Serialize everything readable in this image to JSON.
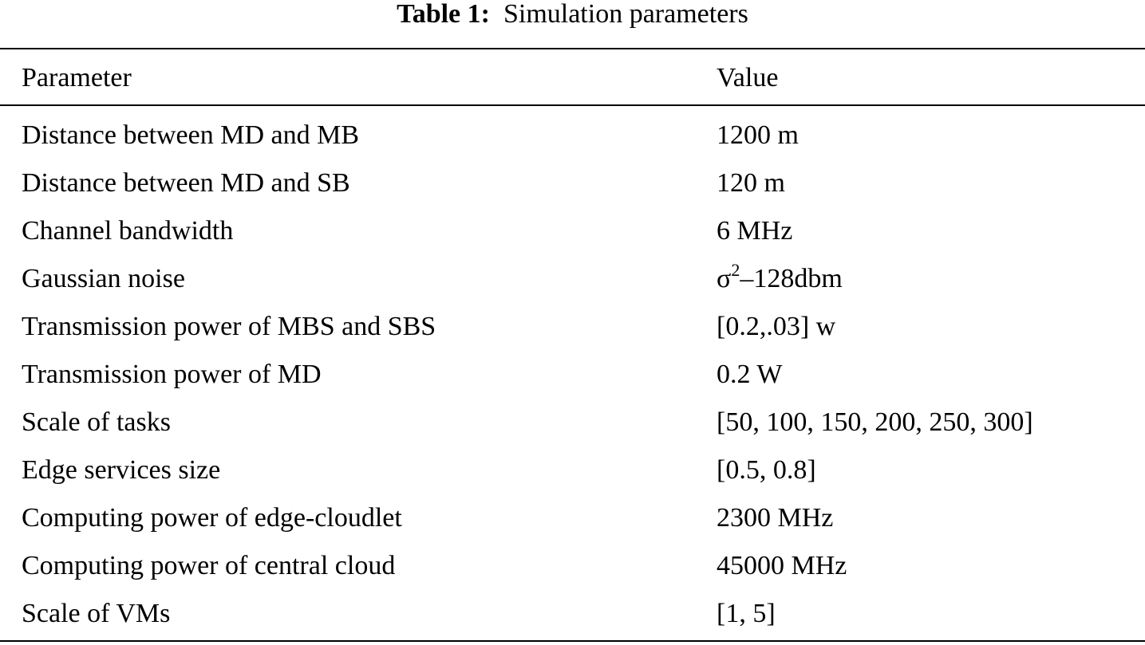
{
  "caption": {
    "label": "Table 1:",
    "text": "Simulation parameters"
  },
  "table": {
    "header": [
      "Parameter",
      "Value"
    ],
    "rows": [
      [
        "Distance between MD and MB",
        "1200 m"
      ],
      [
        "Distance between MD and SB",
        "120 m"
      ],
      [
        "Channel bandwidth",
        "6 MHz"
      ],
      [
        "Gaussian noise",
        {
          "base": "σ",
          "sup": "2",
          "rest": "–128dbm"
        }
      ],
      [
        "Transmission power of MBS and SBS",
        "[0.2,.03] w"
      ],
      [
        "Transmission power of MD",
        "0.2 W"
      ],
      [
        "Scale of tasks",
        "[50, 100, 150, 200, 250, 300]"
      ],
      [
        "Edge services size",
        "[0.5, 0.8]"
      ],
      [
        "Computing power of edge-cloudlet",
        "2300 MHz"
      ],
      [
        "Computing power of central cloud",
        "45000 MHz"
      ],
      [
        "Scale of VMs",
        "[1, 5]"
      ]
    ]
  }
}
